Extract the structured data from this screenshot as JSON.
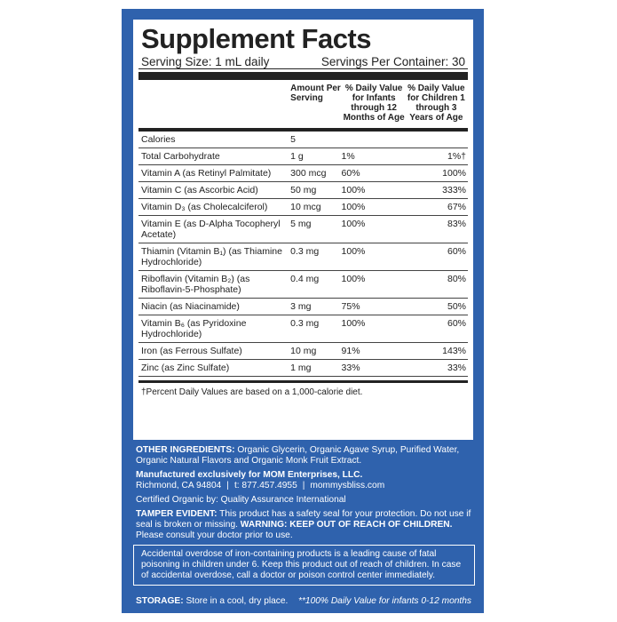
{
  "header": {
    "title": "Supplement Facts",
    "serving_size": "Serving Size: 1 mL daily",
    "servings": "Servings Per Container: 30"
  },
  "columns": [
    "Amount Per Serving",
    "% Daily Value for Infants through 12 Months of Age",
    "% Daily Value for Children 1 through 3 Years of Age"
  ],
  "rows": [
    {
      "name": "Calories",
      "amount": "5"
    },
    {
      "name": "Total Carbohydrate",
      "amount": "1 g",
      "infants": "1%",
      "children": "1%†"
    },
    {
      "name": "Vitamin A (as Retinyl Palmitate)",
      "amount": "300 mcg",
      "infants": "60%",
      "children": "100%"
    },
    {
      "name": "Vitamin C (as Ascorbic Acid)",
      "amount": "50 mg",
      "infants": "100%",
      "children": "333%"
    },
    {
      "name": "Vitamin D₃ (as Cholecalciferol)",
      "amount": "10 mcg",
      "infants": "100%",
      "children": "67%"
    },
    {
      "name": "Vitamin E (as D-Alpha Tocopheryl Acetate)",
      "amount": "5 mg",
      "infants": "100%",
      "children": "83%"
    },
    {
      "name": "Thiamin (Vitamin B₁) (as Thiamine Hydrochloride)",
      "amount": "0.3 mg",
      "infants": "100%",
      "children": "60%"
    },
    {
      "name": "Riboflavin (Vitamin B₂) (as Riboflavin-5-Phosphate)",
      "amount": "0.4 mg",
      "infants": "100%",
      "children": "80%"
    },
    {
      "name": "Niacin (as Niacinamide)",
      "amount": "3 mg",
      "infants": "75%",
      "children": "50%"
    },
    {
      "name": "Vitamin B₆ (as Pyridoxine Hydrochloride)",
      "amount": "0.3 mg",
      "infants": "100%",
      "children": "60%"
    },
    {
      "name": "Iron (as Ferrous Sulfate)",
      "amount": "10 mg",
      "infants": "91%",
      "children": "143%"
    },
    {
      "name": "Zinc (as Zinc Sulfate)",
      "amount": "1 mg",
      "infants": "33%",
      "children": "33%"
    }
  ],
  "footnote": "†Percent Daily Values are based on a 1,000-calorie diet.",
  "other_ingredients": {
    "label": "OTHER INGREDIENTS:",
    "text": "Organic Glycerin, Organic Agave Syrup, Purified Water, Organic Natural Flavors and Organic Monk Fruit Extract."
  },
  "manufacturer": {
    "line": "Manufactured exclusively for MOM Enterprises, LLC.",
    "address": "Richmond, CA 94804",
    "phone": "t: 877.457.4955",
    "web": "mommysbliss.com"
  },
  "certified": "Certified Organic by: Quality Assurance International",
  "tamper": {
    "label": "TAMPER EVIDENT:",
    "text": "This product has a safety seal for your protection. Do not use if seal is broken or missing.",
    "warning": "WARNING: KEEP OUT OF REACH OF CHILDREN.",
    "advice": "Please consult your doctor prior to use."
  },
  "overdose": "Accidental overdose of iron-containing products is a leading cause of fatal poisoning in children under 6. Keep this product out of reach of children. In case of accidental overdose, call a doctor or poison control center immediately.",
  "storage": {
    "label": "STORAGE:",
    "text": "Store in a cool, dry place.",
    "note": "**100% Daily Value for infants 0-12 months"
  }
}
